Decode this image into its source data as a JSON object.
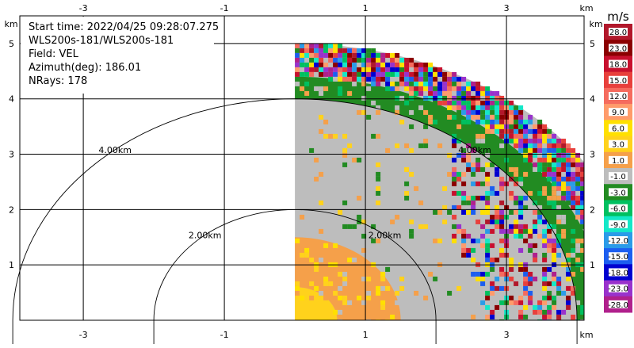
{
  "info": {
    "start_time": "Start time: 2022/04/25 09:28:07.275",
    "instrument": "WLS200s-181/WLS200s-181",
    "field": "Field: VEL",
    "azimuth": "Azimuth(deg): 186.01",
    "nrays": "NRays: 178"
  },
  "colorbar": {
    "unit": "m/s",
    "levels": [
      "28.0",
      "23.0",
      "18.0",
      "15.0",
      "12.0",
      "9.0",
      "6.0",
      "3.0",
      "1.0",
      "-1.0",
      "-3.0",
      "-6.0",
      "-9.0",
      "-12.0",
      "-15.0",
      "-18.0",
      "-23.0",
      "-28.0"
    ],
    "colors": [
      "#b2182b",
      "#8b0000",
      "#c8102e",
      "#e8403c",
      "#f56b5e",
      "#ff9b6b",
      "#ffe000",
      "#ffd21c",
      "#f5a04a",
      "#bdbdbd",
      "#228b22",
      "#00c060",
      "#14e8c8",
      "#2a9be8",
      "#1c5ef0",
      "#0000d0",
      "#9932cc",
      "#b0208c"
    ]
  },
  "chart_data": {
    "type": "heatmap",
    "title": "Start time: 2022/04/25 09:28:07.275",
    "field": "VEL",
    "units": "m/s",
    "xlabel": "km",
    "ylabel": "km",
    "xlim": [
      -3.9,
      4.1
    ],
    "ylim": [
      0,
      5.5
    ],
    "xticks": [
      "-3",
      "-1",
      "1",
      "3"
    ],
    "xtick_values": [
      -3,
      -1,
      1,
      3
    ],
    "yticks": [
      "1",
      "2",
      "3",
      "4",
      "5"
    ],
    "ytick_values": [
      1,
      2,
      3,
      4,
      5
    ],
    "range_rings": [
      {
        "radius_km": 2.0,
        "label": "2.00km"
      },
      {
        "radius_km": 4.0,
        "label": "4.00km"
      }
    ],
    "sector": {
      "x_start_km": 0.0,
      "max_range_km": 5.0
    },
    "velocity_bands": [
      {
        "from_km": 0.0,
        "to_km": 0.6,
        "class": "3.0"
      },
      {
        "from_km": 0.6,
        "to_km": 1.5,
        "class": "1.0"
      },
      {
        "from_km": 1.5,
        "to_km": 4.0,
        "class": "-1.0"
      },
      {
        "from_km": 4.0,
        "to_km": 4.4,
        "class": "-3.0"
      },
      {
        "from_km": 4.4,
        "to_km": 5.0,
        "class": "mixed"
      }
    ]
  }
}
